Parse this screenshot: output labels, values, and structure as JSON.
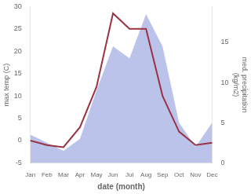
{
  "chart_data": {
    "type": "line",
    "xlabel": "date (month)",
    "ylabel": "max temp (C)",
    "y2label": "med. precipitation\n(kg/m2)",
    "categories": [
      "Jan",
      "Feb",
      "Mar",
      "Apr",
      "May",
      "Jun",
      "Jul",
      "Aug",
      "Sep",
      "Oct",
      "Nov",
      "Dec"
    ],
    "series": [
      {
        "type": "area",
        "axis": "y2",
        "color": "#b0b8e8",
        "values": [
          3.5,
          2.5,
          1.5,
          3.0,
          9.0,
          14.5,
          13.0,
          18.5,
          14.5,
          5.0,
          2.0,
          5.0
        ]
      },
      {
        "type": "line",
        "color": "#993344",
        "values": [
          0.0,
          -1.0,
          -1.5,
          3.0,
          12.0,
          28.5,
          25.0,
          25.0,
          10.0,
          2.0,
          -1.0,
          -0.5
        ]
      }
    ],
    "ylim": [
      -5,
      30
    ],
    "yticks": [
      -5,
      0,
      5,
      10,
      15,
      20,
      25,
      30
    ],
    "y2lim": [
      0,
      19.44
    ],
    "y2ticks": [
      0,
      5,
      10,
      15
    ],
    "grid": false
  }
}
